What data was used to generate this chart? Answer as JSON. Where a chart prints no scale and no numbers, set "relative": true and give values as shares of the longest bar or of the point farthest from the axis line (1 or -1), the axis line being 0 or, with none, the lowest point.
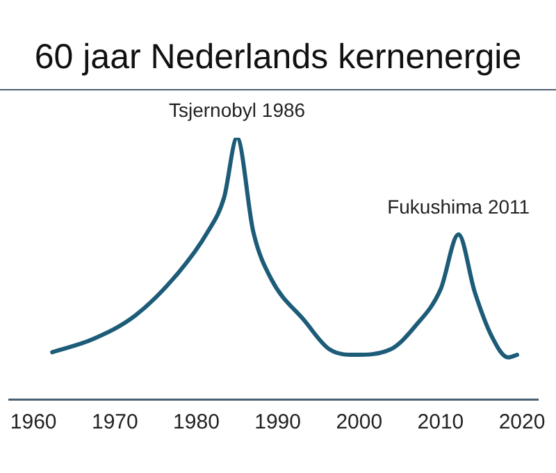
{
  "chart_data": {
    "type": "line",
    "title": "60 jaar Nederlands kernenergie",
    "relative": true,
    "x": [
      1962.3,
      1967.3,
      1972.5,
      1977.7,
      1981.4,
      1983.4,
      1985.0,
      1987.0,
      1989.2,
      1993.3,
      1996.4,
      1999.5,
      2003.8,
      2006.9,
      2010.0,
      2012.2,
      2014.2,
      2016.3,
      2018.3,
      2019.4
    ],
    "series": [
      {
        "color": "#1d5c78",
        "values": [
          0.18,
          0.23,
          0.32,
          0.48,
          0.64,
          0.77,
          1,
          0.64,
          0.46,
          0.3,
          0.19,
          0.17,
          0.19,
          0.28,
          0.42,
          0.63,
          0.41,
          0.24,
          0.16,
          0.17
        ]
      }
    ],
    "xlim": [
      1957,
      2022
    ],
    "xticks": [
      1960,
      1970,
      1980,
      1990,
      2000,
      2010,
      2020
    ],
    "annotations": [
      {
        "text": "Tsjernobyl 1986",
        "x": 1985.0,
        "y": 1
      },
      {
        "text": "Fukushima 2011",
        "x": 2012.2,
        "y": 0.63
      }
    ],
    "grid": false,
    "legend": false,
    "marker": "none",
    "line_style": "solid"
  }
}
